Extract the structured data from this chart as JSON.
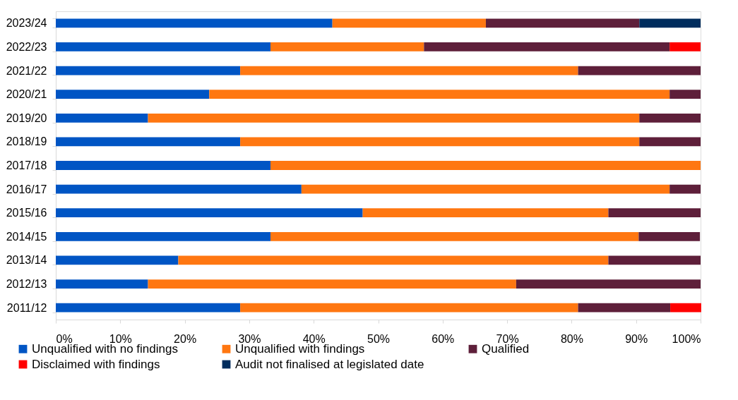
{
  "chart_data": {
    "type": "bar",
    "orientation": "horizontal",
    "stacked": true,
    "categories": [
      "2023/24",
      "2022/23",
      "2021/22",
      "2020/21",
      "2019/20",
      "2018/19",
      "2017/18",
      "2016/17",
      "2015/16",
      "2014/15",
      "2013/14",
      "2012/13",
      "2011/12"
    ],
    "series": [
      {
        "name": "Unqualified with no findings",
        "color": "#0055c4",
        "values": [
          42.9,
          33.3,
          28.6,
          23.8,
          14.3,
          28.6,
          33.3,
          38.1,
          47.6,
          33.3,
          19.0,
          14.3,
          28.6
        ]
      },
      {
        "name": "Unqualified with findings",
        "color": "#ff7711",
        "values": [
          23.8,
          23.8,
          52.4,
          71.4,
          76.2,
          61.9,
          66.7,
          57.1,
          38.1,
          57.1,
          66.7,
          57.1,
          52.4
        ]
      },
      {
        "name": "Qualified",
        "color": "#5e1f3a",
        "values": [
          23.8,
          38.1,
          19.0,
          4.8,
          9.5,
          9.5,
          null,
          4.8,
          14.3,
          9.5,
          14.3,
          28.6,
          14.3
        ]
      },
      {
        "name": "Disclaimed with findings",
        "color": "#ff0000",
        "values": [
          null,
          4.8,
          null,
          null,
          null,
          null,
          null,
          null,
          null,
          null,
          null,
          null,
          4.8
        ]
      },
      {
        "name": "Audit not finalised at legislated date",
        "color": "#002d5e",
        "values": [
          9.5,
          null,
          null,
          null,
          null,
          null,
          null,
          null,
          null,
          null,
          null,
          null,
          null
        ]
      }
    ],
    "xlim": [
      0,
      100
    ],
    "xticks": [
      {
        "value": 0,
        "label": "0%"
      },
      {
        "value": 10,
        "label": "10%"
      },
      {
        "value": 20,
        "label": "20%"
      },
      {
        "value": 30,
        "label": "30%"
      },
      {
        "value": 40,
        "label": "40%"
      },
      {
        "value": 50,
        "label": "50%"
      },
      {
        "value": 60,
        "label": "60%"
      },
      {
        "value": 70,
        "label": "70%"
      },
      {
        "value": 80,
        "label": "80%"
      },
      {
        "value": 90,
        "label": "90%"
      },
      {
        "value": 100,
        "label": "100%"
      }
    ],
    "grid": false,
    "legend": "bottom"
  }
}
